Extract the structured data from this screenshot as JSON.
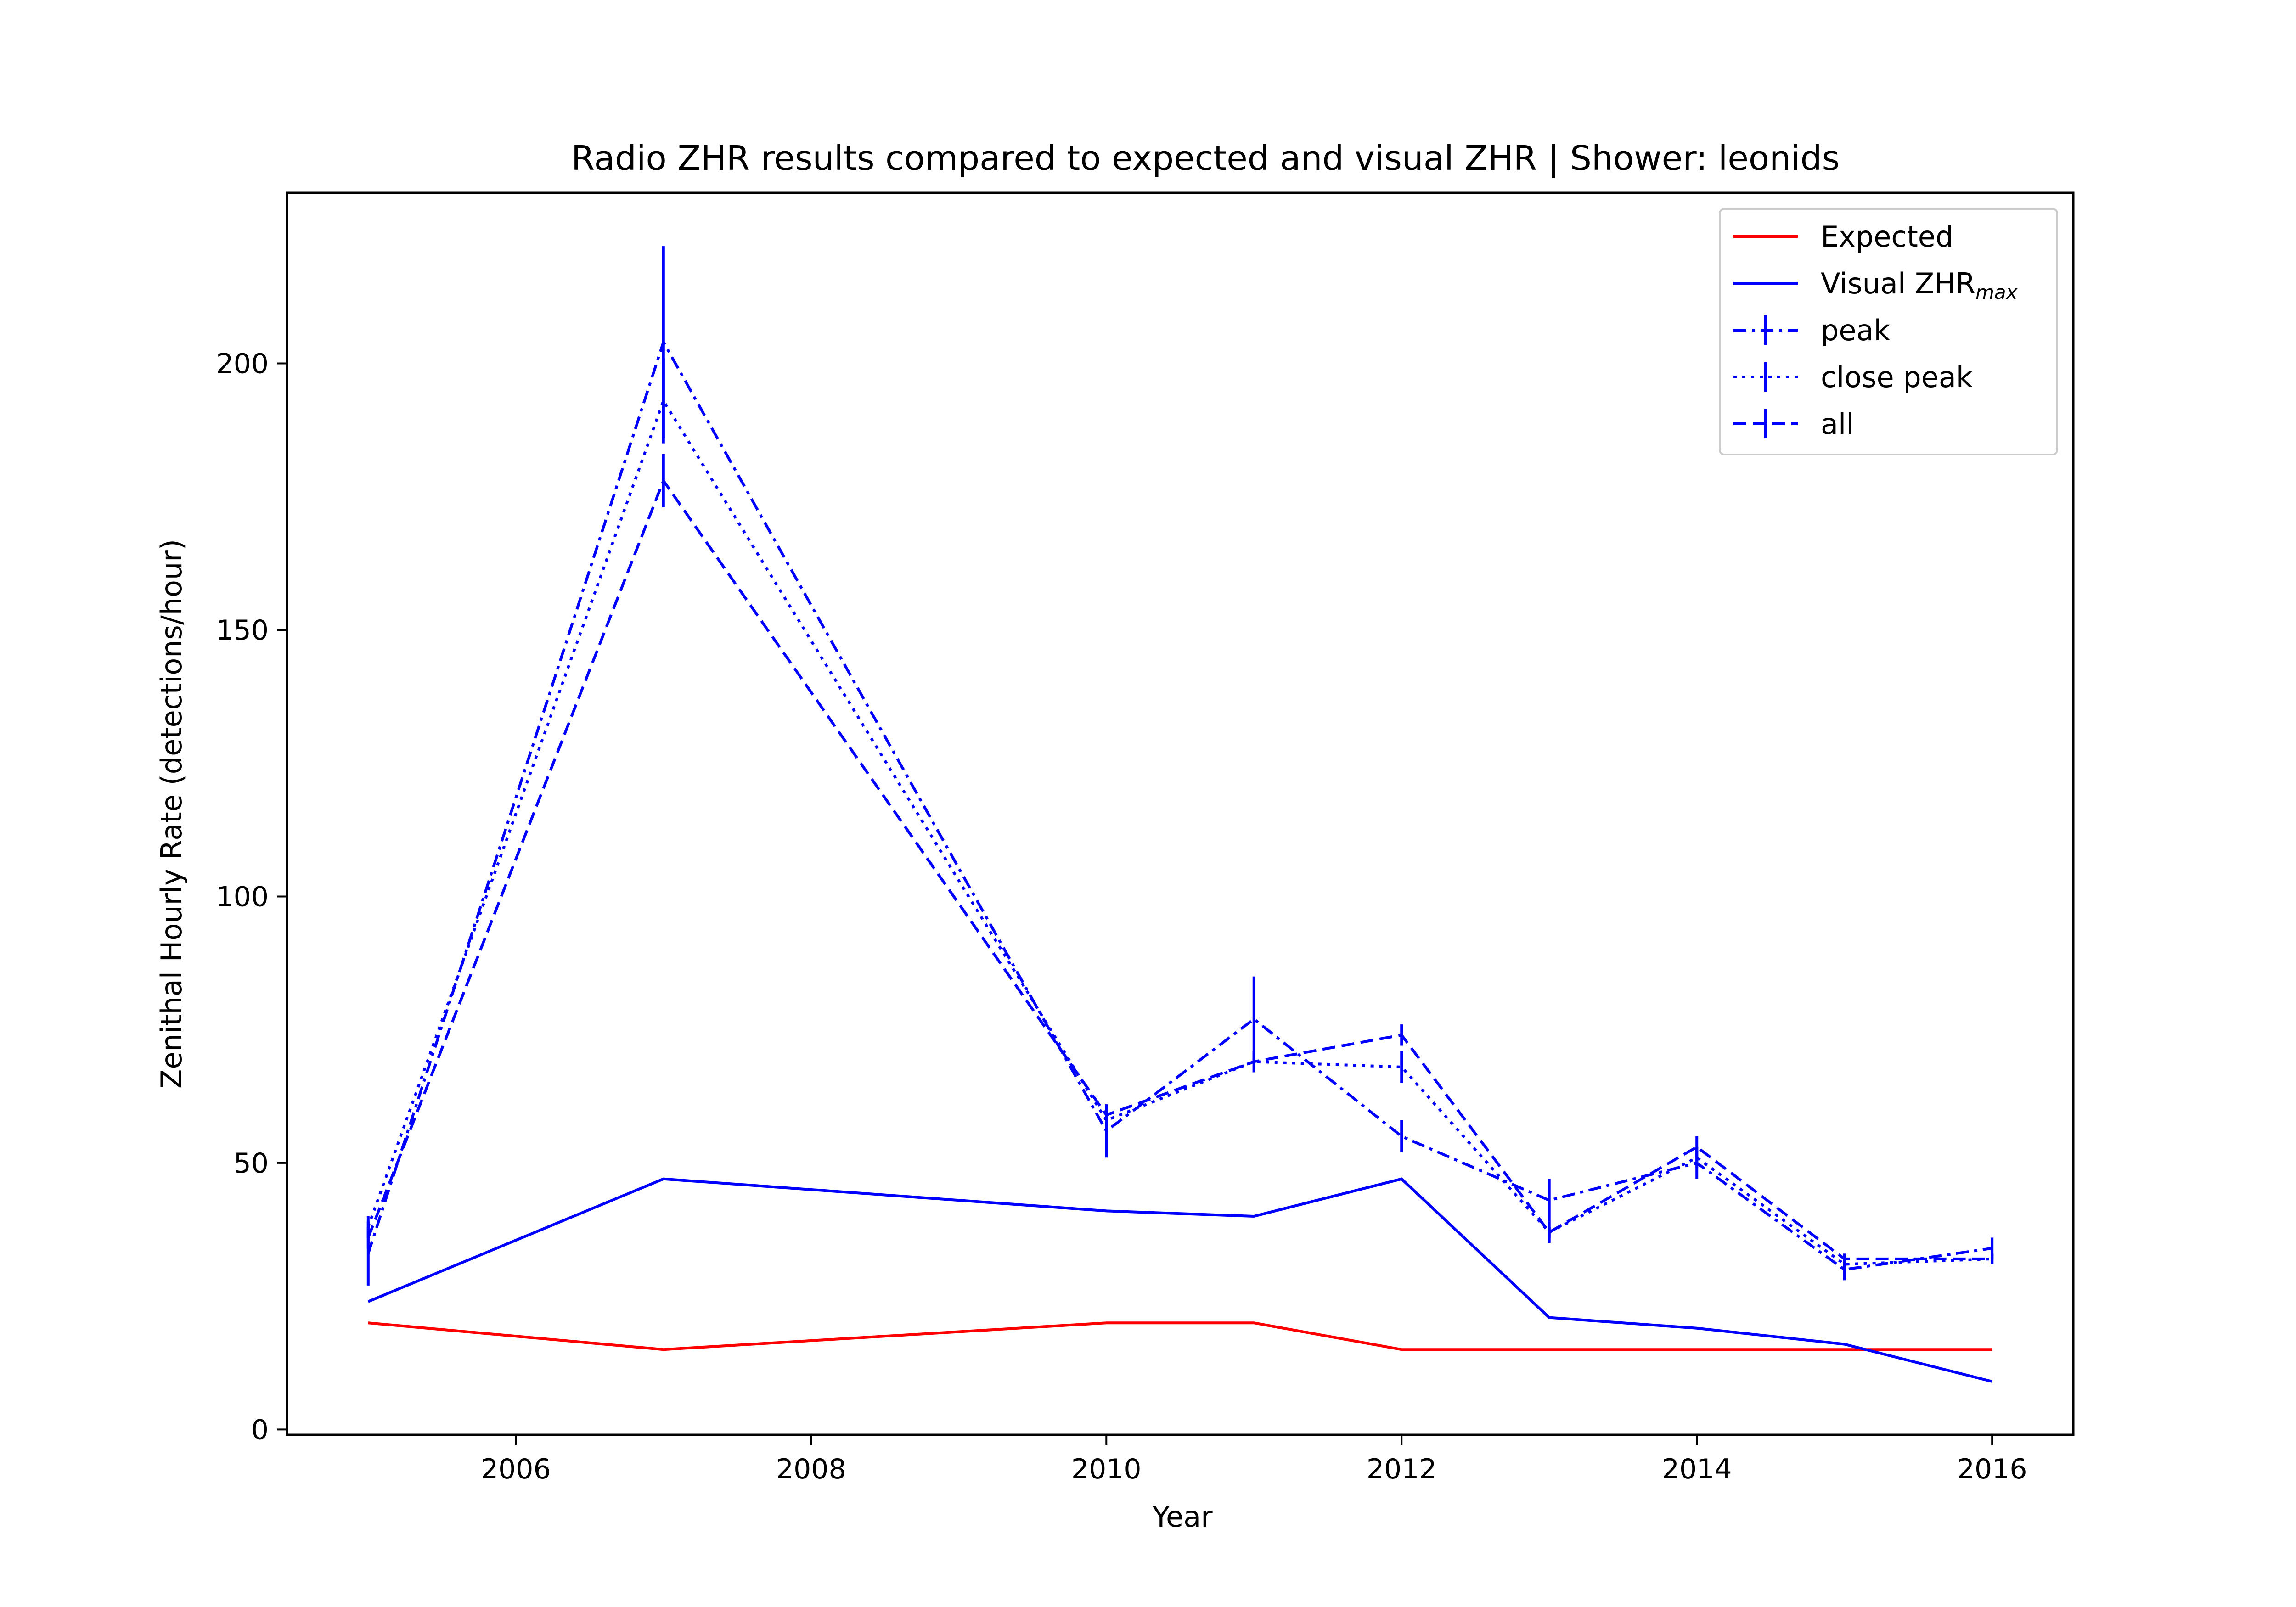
{
  "chart_data": {
    "type": "line",
    "title": "Radio ZHR results compared to expected and visual ZHR | Shower: leonids",
    "xlabel": "Year",
    "ylabel": "Zenithal Hourly Rate (detections/hour)",
    "xlim": [
      2004.45,
      2016.55
    ],
    "ylim": [
      -1,
      232
    ],
    "x_ticks": [
      2006,
      2008,
      2010,
      2012,
      2014,
      2016
    ],
    "y_ticks": [
      0,
      50,
      100,
      150,
      200
    ],
    "grid": false,
    "legend": "top-right",
    "x": [
      2005,
      2007,
      2010,
      2011,
      2012,
      2013,
      2014,
      2015,
      2016
    ],
    "series": [
      {
        "name": "Expected",
        "color": "#ff0000",
        "dash": "solid",
        "errorbars": false,
        "values": [
          20,
          15,
          20,
          20,
          15,
          15,
          15,
          15,
          15
        ]
      },
      {
        "name": "Visual ZHR",
        "name_sub": "max",
        "color": "#0000ff",
        "dash": "solid",
        "errorbars": false,
        "values": [
          24,
          47,
          41,
          40,
          47,
          21,
          19,
          16,
          9
        ]
      },
      {
        "name": "peak",
        "color": "#0000ff",
        "dash": "dashdot",
        "errorbars": true,
        "values": [
          33,
          204,
          56,
          77,
          55,
          43,
          50,
          30,
          34
        ],
        "errors": [
          6,
          18,
          5,
          8,
          3,
          4,
          3,
          2,
          2
        ]
      },
      {
        "name": "close peak",
        "color": "#0000ff",
        "dash": "dotted",
        "errorbars": true,
        "values": [
          38,
          193,
          58,
          69,
          68,
          37,
          51,
          31,
          32
        ],
        "errors": [
          2,
          8,
          2,
          2,
          3,
          2,
          2,
          1,
          1
        ]
      },
      {
        "name": "all",
        "color": "#0000ff",
        "dash": "dashed",
        "errorbars": true,
        "values": [
          36,
          178,
          59,
          69,
          74,
          37,
          53,
          32,
          32
        ],
        "errors": [
          2,
          5,
          2,
          2,
          2,
          1,
          2,
          1,
          1
        ]
      }
    ]
  }
}
